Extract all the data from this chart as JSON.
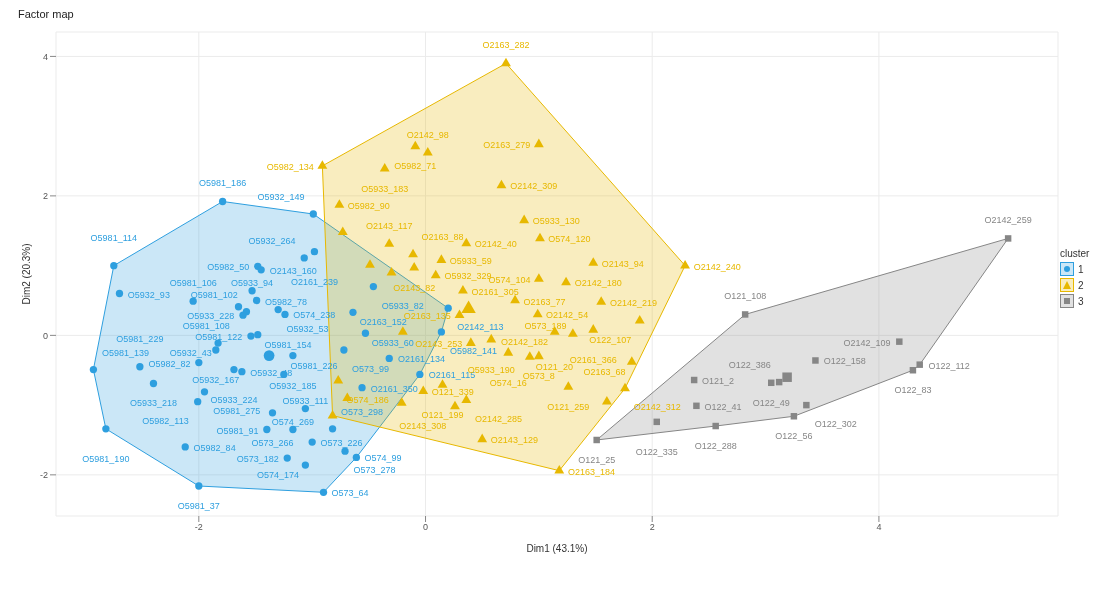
{
  "chart_data": {
    "type": "scatter",
    "title": "Factor map",
    "xlabel": "Dim1 (43.1%)",
    "ylabel": "Dim2 (20.3%)",
    "legend_title": "cluster",
    "legend": "right",
    "grid": true,
    "xlim": [
      -3.26,
      5.58
    ],
    "xticks": [
      -2,
      0,
      2,
      4
    ],
    "ylim": [
      -2.59,
      4.35
    ],
    "yticks": [
      -2,
      0,
      2,
      4
    ],
    "series": [
      {
        "name": "1",
        "color": "#2e9fdf",
        "marker": "circle",
        "x": [
          -1.79,
          -0.99,
          -2.75,
          -2.7,
          -2.05,
          -1.48,
          -1.45,
          -1.07,
          -0.98,
          -1.53,
          -1.49,
          -1.65,
          -1.58,
          -1.3,
          -1.24,
          -1.61,
          -1.54,
          -1.48,
          -1.83,
          -1.85,
          -1.69,
          -1.17,
          -2.52,
          -2.0,
          -1.62,
          -1.25,
          -2.93,
          -2.4,
          -1.95,
          -2.01,
          -2.82,
          -1.35,
          -1.06,
          -1.17,
          -0.82,
          -1.4,
          -1.0,
          -0.71,
          -1.22,
          -2.12,
          -1.06,
          -0.61,
          -2.0,
          -0.9,
          -0.46,
          -0.64,
          -0.53,
          -0.72,
          -0.32,
          0.2,
          0.14,
          -0.05,
          -0.56
        ],
        "values": [
          1.92,
          1.74,
          1.0,
          0.6,
          0.49,
          0.99,
          0.94,
          1.11,
          1.2,
          0.64,
          0.5,
          0.41,
          0.34,
          0.37,
          0.3,
          0.29,
          -0.01,
          0.01,
          -0.11,
          -0.21,
          -0.49,
          -0.29,
          -0.45,
          -0.39,
          -0.52,
          -0.56,
          -0.49,
          -0.69,
          -0.81,
          -0.95,
          -1.34,
          -1.11,
          -1.05,
          -1.35,
          -1.34,
          -1.35,
          -1.53,
          -1.66,
          -1.76,
          -1.6,
          -1.86,
          -1.75,
          -2.16,
          -2.25,
          0.7,
          0.33,
          0.03,
          -0.21,
          -0.33,
          0.39,
          0.05,
          -0.56,
          -0.75
        ]
      },
      {
        "name": "2",
        "color": "#e7b800",
        "marker": "triangle",
        "x": [
          0.71,
          -0.09,
          1.0,
          -0.36,
          0.02,
          -0.91,
          0.67,
          -0.76,
          0.87,
          1.01,
          0.36,
          -0.32,
          -0.11,
          0.14,
          -0.1,
          -0.73,
          -0.49,
          1.48,
          2.29,
          1.24,
          1.55,
          1.89,
          1.48,
          1.82,
          1.76,
          0.5,
          1.18,
          1.0,
          0.09,
          0.33,
          0.79,
          0.3,
          0.99,
          1.14,
          0.58,
          1.3,
          0.4,
          1.0,
          0.73,
          0.92,
          0.15,
          -0.02,
          0.36,
          0.26,
          1.26,
          -0.77,
          -0.21,
          -0.69,
          1.6,
          -0.82,
          -0.3,
          -0.2
        ],
        "values": [
          3.9,
          2.71,
          2.74,
          2.39,
          2.62,
          2.43,
          2.15,
          1.87,
          1.65,
          1.39,
          1.32,
          1.31,
          1.16,
          1.08,
          0.97,
          1.48,
          1.01,
          1.04,
          1.0,
          0.76,
          0.48,
          0.21,
          0.08,
          -0.38,
          -0.76,
          -1.49,
          -1.94,
          0.81,
          0.86,
          0.64,
          0.5,
          0.29,
          0.3,
          0.05,
          -0.06,
          0.02,
          -0.11,
          -0.3,
          -0.25,
          -0.31,
          -0.71,
          -0.8,
          -0.93,
          -1.02,
          -0.74,
          -0.65,
          -0.97,
          -0.9,
          -0.95,
          -1.15,
          0.9,
          0.05
        ]
      },
      {
        "name": "3",
        "color": "#868686",
        "marker": "square",
        "x": [
          5.14,
          2.82,
          4.18,
          3.44,
          4.36,
          4.3,
          2.37,
          3.05,
          3.12,
          2.39,
          3.36,
          3.25,
          2.56,
          2.04,
          1.51
        ],
        "values": [
          1.39,
          0.3,
          -0.09,
          -0.36,
          -0.42,
          -0.5,
          -0.64,
          -0.68,
          -0.67,
          -1.01,
          -1.0,
          -1.16,
          -1.3,
          -1.24,
          -1.5
        ]
      },
      {
        "color": "#2e9fdf",
        "marker": "circle",
        "x": [
          -1.38
        ],
        "values": [
          -0.29
        ]
      },
      {
        "color": "#e7b800",
        "marker": "triangle",
        "x": [
          0.38
        ],
        "values": [
          0.38
        ]
      },
      {
        "color": "#868686",
        "marker": "square",
        "x": [
          3.19
        ],
        "values": [
          -0.6
        ]
      }
    ],
    "annotations": [
      {
        "text": "O5981_186",
        "x": -1.79,
        "y": 1.92
      },
      {
        "text": "O5932_149",
        "x": -0.99,
        "y": 1.74
      },
      {
        "text": "O5981_114",
        "x": -2.75,
        "y": 1.0
      },
      {
        "text": "O5932_93",
        "x": -2.7,
        "y": 0.6
      },
      {
        "text": "O5981_106",
        "x": -2.05,
        "y": 0.49
      },
      {
        "text": "O5982_50",
        "x": -1.48,
        "y": 0.99
      },
      {
        "text": "O2143_160",
        "x": -1.45,
        "y": 0.94
      },
      {
        "text": "O5932_264",
        "x": -1.07,
        "y": 1.11
      },
      {
        "text": "O2161_239",
        "x": -0.98,
        "y": 1.2
      },
      {
        "text": "O5933_94",
        "x": -1.53,
        "y": 0.64
      },
      {
        "text": "O5982_78",
        "x": -1.49,
        "y": 0.5
      },
      {
        "text": "O5981_108",
        "x": -1.65,
        "y": 0.41
      },
      {
        "text": "O5981_102",
        "x": -1.58,
        "y": 0.34
      },
      {
        "text": "O5932_53",
        "x": -1.3,
        "y": 0.37
      },
      {
        "text": "O574_238",
        "x": -1.24,
        "y": 0.3
      },
      {
        "text": "O5933_228",
        "x": -1.61,
        "y": 0.29
      },
      {
        "text": "O5981_122",
        "x": -1.54,
        "y": -0.01
      },
      {
        "text": "O5981_154",
        "x": -1.48,
        "y": 0.01
      },
      {
        "text": "O5932_43",
        "x": -1.83,
        "y": -0.11
      },
      {
        "text": "O5932_167",
        "x": -1.85,
        "y": -0.21
      },
      {
        "text": "O5933_224",
        "x": -1.69,
        "y": -0.49
      },
      {
        "text": "O5932_185",
        "x": -1.17,
        "y": -0.29
      },
      {
        "text": "O5981_229",
        "x": -2.52,
        "y": -0.45
      },
      {
        "text": "O5982_82",
        "x": -2.0,
        "y": -0.39
      },
      {
        "text": "O5932_48",
        "x": -1.62,
        "y": -0.52
      },
      {
        "text": "O5981_226",
        "x": -1.25,
        "y": -0.56
      },
      {
        "text": "O5981_139",
        "x": -2.93,
        "y": -0.49
      },
      {
        "text": "O5933_218",
        "x": -2.4,
        "y": -0.69
      },
      {
        "text": "O5981_275",
        "x": -1.95,
        "y": -0.81
      },
      {
        "text": "O5982_113",
        "x": -2.01,
        "y": -0.95
      },
      {
        "text": "O5981_190",
        "x": -2.82,
        "y": -1.34
      },
      {
        "text": "O573_266",
        "x": -1.35,
        "y": -1.11
      },
      {
        "text": "O5933_111",
        "x": -1.06,
        "y": -1.05
      },
      {
        "text": "O574_269",
        "x": -1.17,
        "y": -1.35
      },
      {
        "text": "O573_298",
        "x": -0.82,
        "y": -1.34
      },
      {
        "text": "O5981_91",
        "x": -1.4,
        "y": -1.35
      },
      {
        "text": "O573_226",
        "x": -1.0,
        "y": -1.53
      },
      {
        "text": "O573_278",
        "x": -0.71,
        "y": -1.66
      },
      {
        "text": "O573_182",
        "x": -1.22,
        "y": -1.76
      },
      {
        "text": "O5982_84",
        "x": -2.12,
        "y": -1.6
      },
      {
        "text": "O574_174",
        "x": -1.06,
        "y": -1.86
      },
      {
        "text": "O574_99",
        "x": -0.61,
        "y": -1.75
      },
      {
        "text": "O5981_37",
        "x": -2.0,
        "y": -2.16
      },
      {
        "text": "O573_64",
        "x": -0.9,
        "y": -2.25
      },
      {
        "text": "O5933_82",
        "x": -0.46,
        "y": 0.7
      },
      {
        "text": "O2163_152",
        "x": -0.64,
        "y": 0.33
      },
      {
        "text": "O5933_60",
        "x": -0.53,
        "y": 0.03
      },
      {
        "text": "O573_99",
        "x": -0.72,
        "y": -0.21
      },
      {
        "text": "O2161_134",
        "x": -0.32,
        "y": -0.33
      },
      {
        "text": "O2142_113",
        "x": 0.2,
        "y": 0.39
      },
      {
        "text": "O5982_141",
        "x": 0.14,
        "y": 0.05
      },
      {
        "text": "O2161_115",
        "x": -0.05,
        "y": -0.56
      },
      {
        "text": "O2161_350",
        "x": -0.56,
        "y": -0.75
      },
      {
        "text": "O2163_282",
        "x": 0.71,
        "y": 3.9
      },
      {
        "text": "O5982_71",
        "x": -0.09,
        "y": 2.71
      },
      {
        "text": "O2163_279",
        "x": 1.0,
        "y": 2.74
      },
      {
        "text": "O5933_183",
        "x": -0.36,
        "y": 2.39
      },
      {
        "text": "O2142_98",
        "x": 0.02,
        "y": 2.62
      },
      {
        "text": "O5982_134",
        "x": -0.91,
        "y": 2.43
      },
      {
        "text": "O2142_309",
        "x": 0.67,
        "y": 2.15
      },
      {
        "text": "O5982_90",
        "x": -0.76,
        "y": 1.87
      },
      {
        "text": "O5933_130",
        "x": 0.87,
        "y": 1.65
      },
      {
        "text": "O574_120",
        "x": 1.01,
        "y": 1.39
      },
      {
        "text": "O2142_40",
        "x": 0.36,
        "y": 1.32
      },
      {
        "text": "O2143_117",
        "x": -0.32,
        "y": 1.31
      },
      {
        "text": "O2163_88",
        "x": -0.11,
        "y": 1.16
      },
      {
        "text": "O5933_59",
        "x": 0.14,
        "y": 1.08
      },
      {
        "text": "O2143_82",
        "x": -0.1,
        "y": 0.97
      },
      {
        "text": "O2143_94",
        "x": 1.48,
        "y": 1.04
      },
      {
        "text": "O2142_240",
        "x": 2.29,
        "y": 1.0
      },
      {
        "text": "O2142_180",
        "x": 1.24,
        "y": 0.76
      },
      {
        "text": "O2142_219",
        "x": 1.55,
        "y": 0.48
      },
      {
        "text": "O122_107",
        "x": 1.89,
        "y": 0.21
      },
      {
        "text": "O2161_366",
        "x": 1.48,
        "y": 0.08
      },
      {
        "text": "O2163_68",
        "x": 1.82,
        "y": -0.38
      },
      {
        "text": "O2142_312",
        "x": 1.76,
        "y": -0.76
      },
      {
        "text": "O2143_129",
        "x": 0.5,
        "y": -1.49
      },
      {
        "text": "O2163_184",
        "x": 1.18,
        "y": -1.94
      },
      {
        "text": "O574_104",
        "x": 1.0,
        "y": 0.81
      },
      {
        "text": "O5932_329",
        "x": 0.09,
        "y": 0.86
      },
      {
        "text": "O2161_305",
        "x": 0.33,
        "y": 0.64
      },
      {
        "text": "O2163_77",
        "x": 0.79,
        "y": 0.5
      },
      {
        "text": "O2163_135",
        "x": 0.3,
        "y": 0.29
      },
      {
        "text": "O2142_54",
        "x": 0.99,
        "y": 0.3
      },
      {
        "text": "O2142_182",
        "x": 1.14,
        "y": 0.05
      },
      {
        "text": "O5933_190",
        "x": 0.58,
        "y": -0.06
      },
      {
        "text": "O573_189",
        "x": 1.3,
        "y": 0.02
      },
      {
        "text": "O2143_253",
        "x": 0.4,
        "y": -0.11
      },
      {
        "text": "O573_8",
        "x": 1.0,
        "y": -0.3
      },
      {
        "text": "O574_16",
        "x": 0.73,
        "y": -0.25
      },
      {
        "text": "O121_20",
        "x": 0.92,
        "y": -0.31
      },
      {
        "text": "O121_199",
        "x": 0.15,
        "y": -0.71
      },
      {
        "text": "O121_339",
        "x": -0.02,
        "y": -0.8
      },
      {
        "text": "O2142_285",
        "x": 0.36,
        "y": -0.93
      },
      {
        "text": "O2143_308",
        "x": 0.26,
        "y": -1.02
      },
      {
        "text": "O121_259",
        "x": 1.26,
        "y": -0.74
      },
      {
        "text": "O574_186",
        "x": -0.77,
        "y": -0.65
      },
      {
        "text": "O2142_259",
        "x": 5.14,
        "y": 1.39
      },
      {
        "text": "O121_108",
        "x": 2.82,
        "y": 0.3
      },
      {
        "text": "O2142_109",
        "x": 4.18,
        "y": -0.09
      },
      {
        "text": "O122_158",
        "x": 3.44,
        "y": -0.36
      },
      {
        "text": "O122_112",
        "x": 4.36,
        "y": -0.42
      },
      {
        "text": "O122_83",
        "x": 4.3,
        "y": -0.5
      },
      {
        "text": "O121_2",
        "x": 2.37,
        "y": -0.64
      },
      {
        "text": "O122_49",
        "x": 3.05,
        "y": -0.68
      },
      {
        "text": "O122_386",
        "x": 3.12,
        "y": -0.67
      },
      {
        "text": "O122_41",
        "x": 2.39,
        "y": -1.01
      },
      {
        "text": "O122_302",
        "x": 3.36,
        "y": -1.0
      },
      {
        "text": "O122_56",
        "x": 3.25,
        "y": -1.16
      },
      {
        "text": "O122_288",
        "x": 2.56,
        "y": -1.3
      },
      {
        "text": "O122_335",
        "x": 2.04,
        "y": -1.24
      },
      {
        "text": "O121_25",
        "x": 1.51,
        "y": -1.5
      }
    ]
  }
}
